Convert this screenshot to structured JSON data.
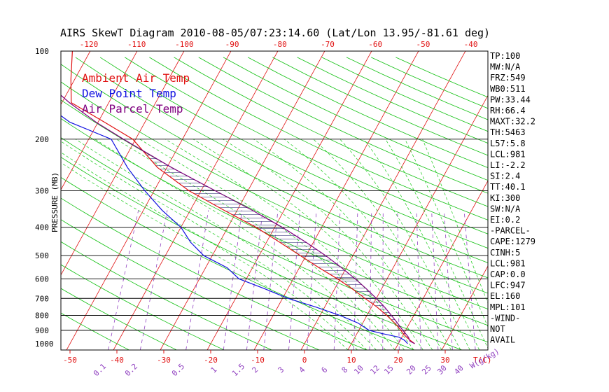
{
  "chart_data": {
    "type": "line",
    "title": "AIRS SkewT Diagram 2010-08-05/07:23:14.60 (Lat/Lon 13.95/-81.61 deg)",
    "ylabel": "PRESSURE (MB)",
    "x_unit_label": "T(C)",
    "mixing_ratio_unit_label": "W(g/kg)",
    "pressure_ticks": [
      "100",
      "200",
      "300",
      "400",
      "500",
      "600",
      "700",
      "800",
      "900",
      "1000"
    ],
    "pressure_lines": [
      200,
      300,
      400,
      500,
      600,
      700,
      800,
      900
    ],
    "bottom_temp_ticks": [
      "-50",
      "-40",
      "-30",
      "-20",
      "-10",
      "0",
      "10",
      "20",
      "30"
    ],
    "top_temp_ticks": [
      "-120",
      "-110",
      "-100",
      "-90",
      "-80",
      "-70",
      "-60",
      "-50",
      "-40"
    ],
    "mixing_ratio_labels": [
      "0.1",
      "0.2",
      "0.5",
      "1",
      "1.5",
      "2",
      "3",
      "4",
      "6",
      "8",
      "10",
      "12",
      "15",
      "20",
      "25",
      "30",
      "40"
    ],
    "legend": [
      {
        "label": "Ambient Air Temp",
        "color": "#e01010"
      },
      {
        "label": "Dew Point Temp",
        "color": "#1010e0"
      },
      {
        "label": "Air Parcel Temp",
        "color": "#800080"
      }
    ],
    "colors": {
      "isotherm": "#e01010",
      "dry_adiabat": "#10c010",
      "moist_adiabat": "#30d030",
      "mixing_ratio": "#9040c0",
      "cape_hatch": "#404080"
    },
    "series": [
      {
        "name": "Ambient Air Temp",
        "p": [
          1000,
          975,
          950,
          925,
          900,
          850,
          800,
          750,
          700,
          650,
          600,
          550,
          500,
          450,
          400,
          350,
          300,
          250,
          200,
          175,
          150,
          125,
          100
        ],
        "t": [
          23.5,
          22.2,
          21.0,
          19.9,
          19.0,
          16.8,
          14.2,
          11.2,
          7.6,
          3.8,
          -0.6,
          -5.8,
          -11.2,
          -17.2,
          -24.0,
          -32.8,
          -42.6,
          -52.0,
          -60.6,
          -68.6,
          -78.0,
          -80.8,
          -83.8
        ]
      },
      {
        "name": "Dew Point Temp",
        "p": [
          1000,
          975,
          950,
          925,
          900,
          850,
          800,
          750,
          700,
          650,
          600,
          550,
          500,
          450,
          400,
          350,
          300,
          250,
          200,
          175,
          150,
          125,
          100
        ],
        "t": [
          22.0,
          21.0,
          19.4,
          15.6,
          12.2,
          9.0,
          4.2,
          -1.8,
          -8.8,
          -14.8,
          -21.6,
          -25.4,
          -31.8,
          -36.2,
          -40.0,
          -46.0,
          -52.0,
          -58.4,
          -65.2,
          -76.0,
          -84.0,
          -89.0,
          -92.0
        ]
      },
      {
        "name": "Air Parcel Temp",
        "p": [
          1000,
          981,
          950,
          925,
          900,
          850,
          800,
          750,
          700,
          650,
          600,
          550,
          500,
          450,
          400,
          350,
          300,
          250,
          200,
          175,
          150,
          125,
          100
        ],
        "t": [
          23.5,
          22.2,
          21.4,
          20.4,
          19.4,
          17.4,
          15.2,
          12.8,
          10.0,
          6.8,
          3.2,
          -1.0,
          -5.8,
          -11.6,
          -18.4,
          -26.8,
          -37.0,
          -49.0,
          -62.6,
          -70.4,
          -78.4,
          -86.8,
          -95.0
        ]
      }
    ],
    "indices": [
      "TP:100",
      "MW:N/A",
      "FRZ:549",
      "WB0:511",
      "PW:33.44",
      "RH:66.4",
      "MAXT:32.2",
      "TH:5463",
      "L57:5.8",
      "LCL:981",
      "LI:-2.2",
      "SI:2.4",
      "TT:40.1",
      "KI:300",
      "SW:N/A",
      "EI:0.2",
      "-PARCEL-",
      "CAPE:1279",
      "CINH:5",
      "LCL:981",
      "CAP:0.0",
      "LFC:947",
      "EL:160",
      "MPL:101",
      "-WIND-",
      "NOT",
      "AVAIL"
    ]
  }
}
